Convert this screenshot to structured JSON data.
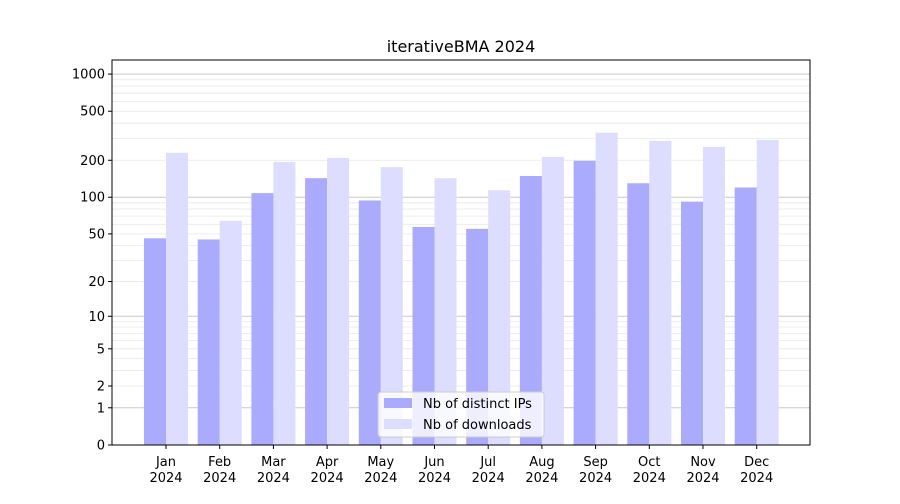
{
  "chart_data": {
    "type": "bar",
    "title": "iterativeBMA 2024",
    "xlabel": "",
    "ylabel": "",
    "yscale": "log10(1+y)",
    "ylim": [
      0,
      1300
    ],
    "yticks": [
      0,
      1,
      2,
      5,
      10,
      20,
      50,
      100,
      200,
      500,
      1000
    ],
    "grid": true,
    "legend_position": "bottom-center",
    "categories": [
      "Jan\n2024",
      "Feb\n2024",
      "Mar\n2024",
      "Apr\n2024",
      "May\n2024",
      "Jun\n2024",
      "Jul\n2024",
      "Aug\n2024",
      "Sep\n2024",
      "Oct\n2024",
      "Nov\n2024",
      "Dec\n2024"
    ],
    "series": [
      {
        "name": "Nb of distinct IPs",
        "color": "#aaaaff",
        "values": [
          46,
          45,
          108,
          143,
          94,
          57,
          55,
          149,
          198,
          130,
          92,
          120
        ]
      },
      {
        "name": "Nb of downloads",
        "color": "#ddddff",
        "values": [
          230,
          64,
          194,
          209,
          176,
          143,
          114,
          213,
          335,
          288,
          257,
          293
        ]
      }
    ]
  }
}
